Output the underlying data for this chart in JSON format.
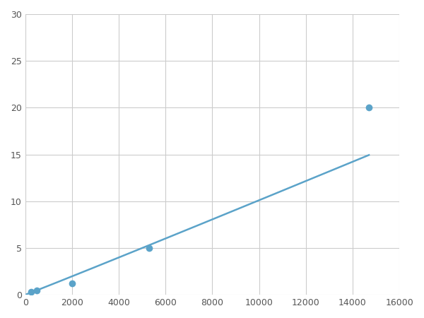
{
  "x": [
    250,
    500,
    2000,
    5300,
    14700
  ],
  "y": [
    0.3,
    0.5,
    1.2,
    5.0,
    20.0
  ],
  "line_color": "#5ba3c9",
  "marker_color": "#5ba3c9",
  "marker_size": 7,
  "linewidth": 1.8,
  "xlim": [
    0,
    16000
  ],
  "ylim": [
    0,
    30
  ],
  "xticks": [
    0,
    2000,
    4000,
    6000,
    8000,
    10000,
    12000,
    14000,
    16000
  ],
  "yticks": [
    0,
    5,
    10,
    15,
    20,
    25,
    30
  ],
  "grid_color": "#cccccc",
  "background_color": "#ffffff",
  "figsize": [
    6.0,
    4.5
  ],
  "dpi": 100
}
